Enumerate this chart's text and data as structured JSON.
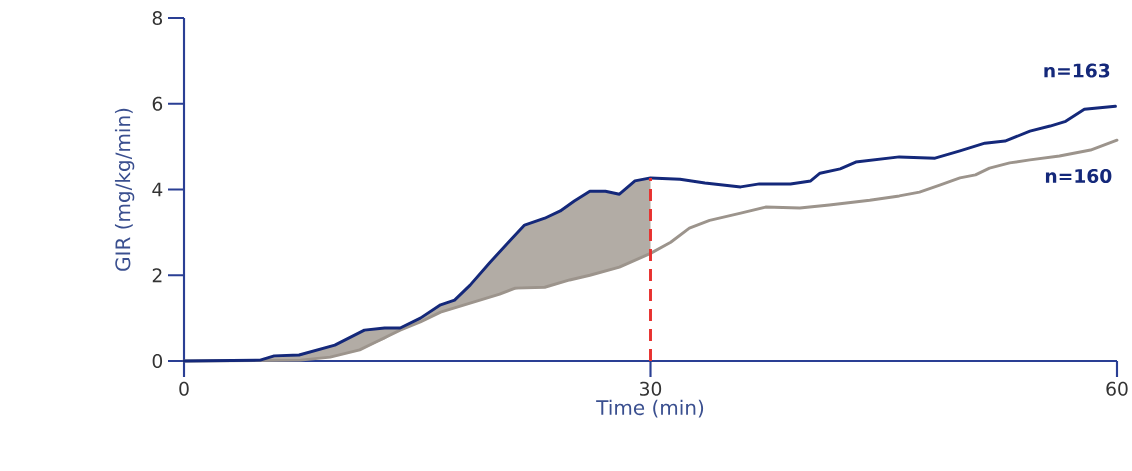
{
  "chart_data": {
    "type": "line",
    "xlabel": "Time (min)",
    "ylabel": "GIR (mg/kg/min)",
    "xlim": [
      0,
      60
    ],
    "ylim": [
      0,
      8
    ],
    "xticks": [
      0,
      30,
      60
    ],
    "yticks": [
      0,
      2,
      4,
      6,
      8
    ],
    "series": [
      {
        "name": "n=160",
        "color": "#9c948c",
        "x": [
          0,
          7.5,
          9.4,
          11.3,
          12.6,
          13.9,
          15.2,
          16.5,
          18.4,
          20.3,
          21.3,
          23.2,
          24.8,
          26.1,
          28.0,
          30.0,
          31.3,
          32.5,
          33.8,
          35.8,
          37.4,
          39.6,
          41.5,
          44.1,
          46.0,
          47.3,
          48.6,
          49.9,
          50.9,
          51.8,
          53.1,
          54.4,
          56.3,
          58.3,
          60.0
        ],
        "values": [
          0,
          0.02,
          0.09,
          0.26,
          0.49,
          0.72,
          0.91,
          1.14,
          1.35,
          1.56,
          1.7,
          1.72,
          1.89,
          2.0,
          2.19,
          2.51,
          2.77,
          3.1,
          3.28,
          3.45,
          3.59,
          3.57,
          3.64,
          3.75,
          3.85,
          3.94,
          4.1,
          4.27,
          4.34,
          4.5,
          4.62,
          4.69,
          4.78,
          4.92,
          5.15
        ]
      },
      {
        "name": "n=163",
        "color": "#14287a",
        "x": [
          0,
          4.9,
          5.8,
          7.4,
          9.7,
          11.6,
          12.9,
          13.9,
          15.2,
          16.5,
          17.4,
          18.4,
          19.7,
          21.0,
          21.9,
          23.2,
          24.2,
          25.1,
          26.1,
          27.1,
          28.0,
          29.0,
          30.0,
          31.9,
          33.5,
          35.8,
          37.0,
          39.0,
          40.3,
          40.9,
          42.2,
          43.2,
          46.0,
          48.3,
          49.9,
          51.5,
          52.8,
          54.4,
          55.7,
          56.7,
          57.9,
          59.9
        ],
        "values": [
          0,
          0.02,
          0.12,
          0.14,
          0.37,
          0.72,
          0.77,
          0.77,
          1.0,
          1.31,
          1.42,
          1.77,
          2.31,
          2.82,
          3.17,
          3.33,
          3.5,
          3.73,
          3.96,
          3.96,
          3.89,
          4.2,
          4.27,
          4.24,
          4.15,
          4.06,
          4.13,
          4.13,
          4.2,
          4.38,
          4.48,
          4.64,
          4.76,
          4.73,
          4.9,
          5.08,
          5.13,
          5.36,
          5.48,
          5.59,
          5.87,
          5.94
        ],
        "lower": [
          0,
          0,
          0,
          0.02,
          0.1,
          0.3,
          0.5,
          0.72,
          0.91,
          1.14,
          1.25,
          1.35,
          1.5,
          1.65,
          1.7,
          1.72,
          1.83,
          1.92,
          2.0,
          2.1,
          2.19,
          2.35,
          2.51,
          null,
          null,
          null,
          null,
          null,
          null,
          null,
          null,
          null,
          null,
          null,
          null,
          null,
          null,
          null,
          null,
          null,
          null,
          null
        ],
        "upper": [
          0,
          0.02,
          0.12,
          0.14,
          0.37,
          0.72,
          0.77,
          0.77,
          1.0,
          1.31,
          1.42,
          1.77,
          2.31,
          2.82,
          3.17,
          3.33,
          3.5,
          3.73,
          3.96,
          3.96,
          3.89,
          4.2,
          4.27,
          null,
          null,
          null,
          null,
          null,
          null,
          null,
          null,
          null,
          null,
          null,
          null,
          null,
          null,
          null,
          null,
          null,
          null,
          null
        ]
      }
    ],
    "ref_lines": [
      {
        "axis": "x",
        "value": 30,
        "color": "#e8312f",
        "line_style": "dashed"
      }
    ]
  }
}
